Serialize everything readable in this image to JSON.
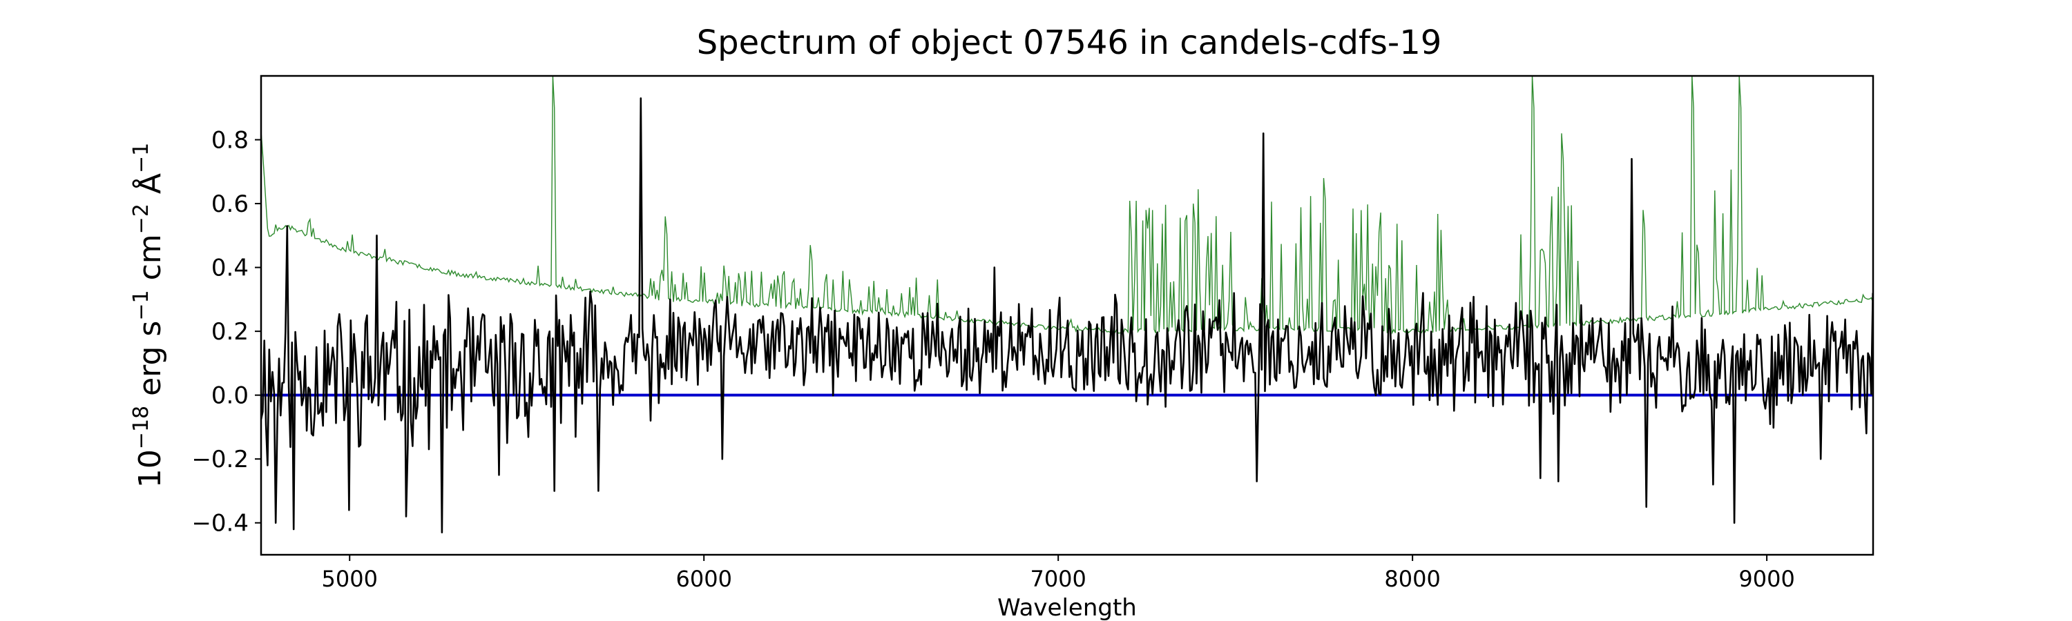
{
  "chart_data": {
    "type": "line",
    "title": "Spectrum of object 07546 in candels-cdfs-19",
    "xlabel": "Wavelength",
    "ylabel_parts": {
      "base": "10",
      "exp1": "−18",
      "erg": " erg s",
      "exp2": "−1",
      "cm": " cm",
      "exp3": "−2",
      "ang": " Å",
      "exp4": "−1"
    },
    "xlim": [
      4750,
      9300
    ],
    "ylim": [
      -0.5,
      1.0
    ],
    "xticks": [
      5000,
      6000,
      7000,
      8000,
      9000
    ],
    "xtick_labels": [
      "5000",
      "6000",
      "7000",
      "8000",
      "9000"
    ],
    "yticks": [
      -0.4,
      -0.2,
      0.0,
      0.2,
      0.4,
      0.6,
      0.8
    ],
    "ytick_labels": [
      "−0.4",
      "−0.2",
      "0.0",
      "0.2",
      "0.4",
      "0.6",
      "0.8"
    ],
    "grid": false,
    "legend": "none",
    "series": [
      {
        "role": "flux",
        "color": "#000000",
        "noise_seed": 11,
        "approx_level": [
          [
            4750,
            0.05
          ],
          [
            5000,
            0.06
          ],
          [
            5500,
            0.08
          ],
          [
            6000,
            0.15
          ],
          [
            6500,
            0.15
          ],
          [
            7000,
            0.13
          ],
          [
            7500,
            0.15
          ],
          [
            8000,
            0.12
          ],
          [
            8500,
            0.12
          ],
          [
            9000,
            0.08
          ],
          [
            9300,
            0.1
          ]
        ],
        "notable_points": [
          [
            4770,
            -0.22
          ],
          [
            4790,
            -0.4
          ],
          [
            4825,
            0.53
          ],
          [
            4840,
            -0.42
          ],
          [
            5000,
            -0.36
          ],
          [
            5075,
            0.5
          ],
          [
            5160,
            -0.38
          ],
          [
            5260,
            -0.43
          ],
          [
            5420,
            -0.25
          ],
          [
            5580,
            -0.3
          ],
          [
            5700,
            -0.3
          ],
          [
            5820,
            0.93
          ],
          [
            5850,
            -0.08
          ],
          [
            6050,
            -0.2
          ],
          [
            6820,
            0.4
          ],
          [
            7580,
            0.82
          ],
          [
            7560,
            -0.27
          ],
          [
            7860,
            0.31
          ],
          [
            8030,
            0.32
          ],
          [
            8360,
            -0.26
          ],
          [
            8410,
            -0.27
          ],
          [
            8620,
            0.74
          ],
          [
            8660,
            -0.35
          ],
          [
            8850,
            -0.28
          ],
          [
            8910,
            -0.4
          ],
          [
            9150,
            -0.2
          ],
          [
            9280,
            -0.12
          ],
          [
            9300,
            0.32
          ]
        ]
      },
      {
        "role": "error",
        "color": "#2e8b2e",
        "noise_seed": 23,
        "approx_level": [
          [
            4750,
            0.83
          ],
          [
            4770,
            0.5
          ],
          [
            4820,
            0.53
          ],
          [
            5000,
            0.45
          ],
          [
            5300,
            0.38
          ],
          [
            5600,
            0.34
          ],
          [
            5900,
            0.3
          ],
          [
            6200,
            0.28
          ],
          [
            6600,
            0.25
          ],
          [
            7000,
            0.21
          ],
          [
            7200,
            0.2
          ],
          [
            7600,
            0.21
          ],
          [
            8000,
            0.2
          ],
          [
            8400,
            0.22
          ],
          [
            8800,
            0.25
          ],
          [
            9300,
            0.3
          ]
        ],
        "notable_points": [
          [
            5575,
            1.0
          ],
          [
            5890,
            0.56
          ],
          [
            6300,
            0.47
          ],
          [
            7250,
            0.58
          ],
          [
            7380,
            0.6
          ],
          [
            7750,
            0.68
          ],
          [
            8340,
            1.0
          ],
          [
            8420,
            0.82
          ],
          [
            8650,
            0.58
          ],
          [
            8790,
            1.0
          ],
          [
            8920,
            1.0
          ]
        ]
      },
      {
        "role": "zero",
        "color": "#0000cc",
        "x": [
          4750,
          9300
        ],
        "y": [
          0.0,
          0.0
        ]
      }
    ]
  }
}
